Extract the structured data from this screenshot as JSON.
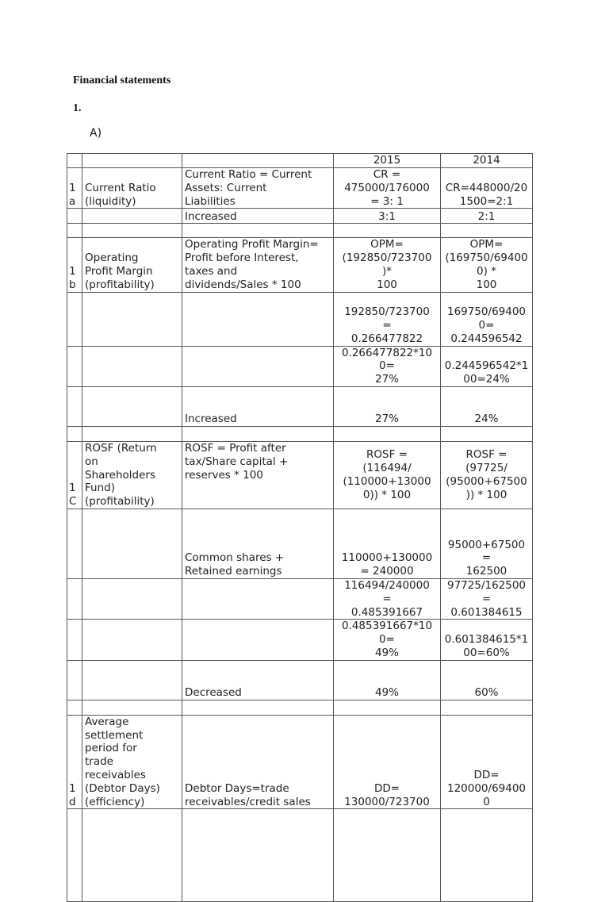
{
  "heading": "Financial statements",
  "section_number": "1.",
  "subsection": "A)",
  "table": {
    "header": [
      "",
      "",
      "",
      "2015",
      "2014"
    ],
    "rows": [
      [
        "1\na",
        "Current Ratio\n(liquidity)",
        "Current Ratio = Current\nAssets: Current\nLiabilities",
        "CR =\n475000/176000\n= 3: 1",
        "CR=448000/20\n1500=2:1"
      ],
      [
        "",
        "",
        " Increased",
        "3:1",
        "2:1"
      ],
      [
        "",
        "",
        "",
        "",
        ""
      ],
      [
        "1\nb",
        "Operating\nProfit Margin\n(profitability)",
        "Operating Profit Margin=\nProfit before Interest,\ntaxes and\ndividends/Sales * 100",
        "OPM=\n(192850/723700\n)*\n100",
        "OPM=\n(169750/69400\n0) *\n100"
      ],
      [
        "",
        "",
        "",
        "192850/723700\n=\n0.266477822",
        "169750/69400\n0=\n0.244596542"
      ],
      [
        "",
        "",
        "",
        "0.266477822*10\n0=\n27%",
        "0.244596542*1\n00=24%"
      ],
      [
        "",
        "",
        " Increased",
        "27%",
        "24%"
      ],
      [
        "",
        "",
        "",
        "",
        ""
      ],
      [
        "1\nC",
        "ROSF (Return\non\nShareholders\nFund)\n(profitability)",
        "ROSF = Profit after\ntax/Share capital +\nreserves * 100",
        "ROSF =\n(116494/\n(110000+13000\n0)) * 100",
        "ROSF =\n(97725/\n(95000+67500\n)) * 100"
      ],
      [
        "",
        "",
        " Common shares +\nRetained earnings",
        "110000+130000\n= 240000",
        "95000+67500\n=\n162500"
      ],
      [
        "",
        "",
        "",
        "116494/240000\n=\n0.485391667",
        "97725/162500\n=\n0.601384615"
      ],
      [
        "",
        "",
        "",
        "0.485391667*10\n0=\n49%",
        "0.601384615*1\n00=60%"
      ],
      [
        "",
        "",
        " Decreased",
        "49%",
        "60%"
      ],
      [
        "",
        "",
        "",
        "",
        ""
      ],
      [
        "1\nd",
        "Average\nsettlement\nperiod for\ntrade\nreceivables\n(Debtor Days)\n(efficiency)",
        "Debtor Days=trade\nreceivables/credit sales",
        "DD=\n130000/723700",
        "DD=\n120000/69400\n0"
      ],
      [
        "",
        "",
        "",
        "",
        ""
      ]
    ]
  }
}
